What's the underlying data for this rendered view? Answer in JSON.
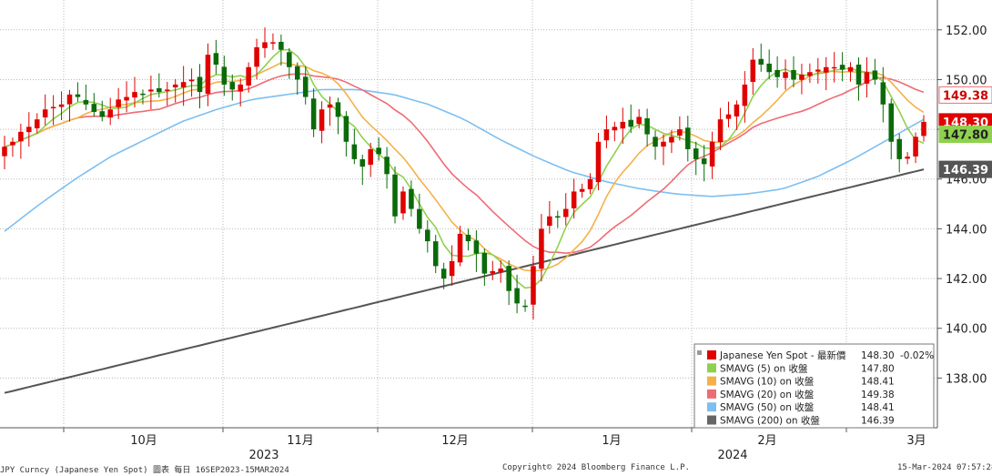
{
  "chart_data": {
    "type": "line",
    "price_type": "candlestick",
    "x_tick_labels": [
      "10月",
      "11月",
      "12月",
      "1月",
      "2月",
      "3月"
    ],
    "x_year_labels": [
      "2023",
      "2024"
    ],
    "y_tick_labels": [
      "138.00",
      "140.00",
      "142.00",
      "144.00",
      "146.00",
      "148.00",
      "150.00",
      "152.00"
    ],
    "ylim": [
      136.0,
      153.2
    ],
    "grid": "dotted",
    "legend_position": "bottom-right",
    "value_badges": [
      "149.38",
      "148.30",
      "147.80",
      "146.39"
    ],
    "legend": [
      {
        "label": "Japanese Yen Spot - 最新價",
        "value": "148.30",
        "change": "-0.02%",
        "color": "#e00000"
      },
      {
        "label": "SMAVG (5)  on 收盤",
        "value": "147.80",
        "color": "#8fd14f"
      },
      {
        "label": "SMAVG (10)  on 收盤",
        "value": "148.41",
        "color": "#f5b04a"
      },
      {
        "label": "SMAVG (20)  on 收盤",
        "value": "149.38",
        "color": "#ef6b74"
      },
      {
        "label": "SMAVG (50)  on 收盤",
        "value": "148.41",
        "color": "#7dbff0"
      },
      {
        "label": "SMAVG (200)  on 收盤",
        "value": "146.39",
        "color": "#666666"
      }
    ],
    "candles_close": [
      147.3,
      147.5,
      147.9,
      148.1,
      148.4,
      148.8,
      148.9,
      149.0,
      149.4,
      149.3,
      149.0,
      148.7,
      148.5,
      148.8,
      149.2,
      149.3,
      149.5,
      149.4,
      149.6,
      149.5,
      149.6,
      149.8,
      149.9,
      150.0,
      149.5,
      151.0,
      150.6,
      149.8,
      149.6,
      149.8,
      150.5,
      151.3,
      151.5,
      151.5,
      151.2,
      150.5,
      150.0,
      149.3,
      148.0,
      148.8,
      149.0,
      148.5,
      147.5,
      146.8,
      146.5,
      147.2,
      147.0,
      146.2,
      144.5,
      145.5,
      144.8,
      144.0,
      143.5,
      142.5,
      142.0,
      142.7,
      143.8,
      143.5,
      143.0,
      142.2,
      142.3,
      142.4,
      141.5,
      141.0,
      140.9,
      142.5,
      144.0,
      144.5,
      144.5,
      144.8,
      145.5,
      145.6,
      146.0,
      147.5,
      148.0,
      148.1,
      148.3,
      148.1,
      148.5,
      147.8,
      147.3,
      147.5,
      147.7,
      148.0,
      147.2,
      146.8,
      146.6,
      147.5,
      148.4,
      148.6,
      149.0,
      149.8,
      150.8,
      150.6,
      150.3,
      150.1,
      150.3,
      150.0,
      150.2,
      150.3,
      150.4,
      150.5,
      150.5,
      150.4,
      150.5,
      149.8,
      150.3,
      150.0,
      149.0,
      147.5,
      146.8,
      146.9,
      147.7,
      148.3
    ]
  },
  "footer": {
    "left": "JPY Curncy (Japanese Yen Spot) 圖表  每日 16SEP2023-15MAR2024",
    "center": "Copyright© 2024 Bloomberg Finance L.P.",
    "right": "15-Mar-2024 07:57:28"
  },
  "colors": {
    "up": "#e00000",
    "down": "#0a6a0a",
    "axis": "#555555",
    "grid": "#bbbbbb"
  }
}
